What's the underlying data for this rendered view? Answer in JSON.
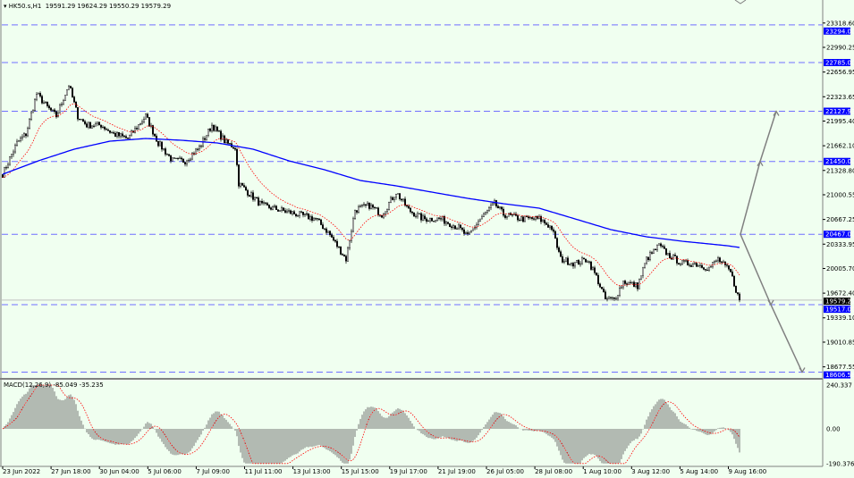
{
  "header": {
    "symbol": "HK50.s,H1",
    "ohlc": "19591.29 19624.29 19550.29 19579.29"
  },
  "macd": {
    "label": "MACD(12,26,9) -85.049 -35.235",
    "ticks": [
      "240.337",
      "0.00",
      "-190.376"
    ]
  },
  "colors": {
    "background": "#f0fff0",
    "level": "#0000ff",
    "level_line": "#6f6fff",
    "slow_ma": "#0000ff",
    "fast_ma": "#ff0000",
    "arrow": "#808080"
  },
  "chart_data": {
    "type": "candlestick",
    "symbol": "HK50.s",
    "timeframe": "H1",
    "y_ticks": [
      "23318.60",
      "22990.25",
      "22656.95",
      "22323.65",
      "21995.40",
      "21662.10",
      "21328.80",
      "21000.55",
      "20667.25",
      "20333.95",
      "20005.70",
      "19672.40",
      "19339.10",
      "19010.85",
      "18677.55"
    ],
    "ylim": [
      18580,
      23530
    ],
    "x_ticks": [
      "23 Jun 2022",
      "27 Jun 18:00",
      "30 Jun 04:00",
      "5 Jul 06:00",
      "7 Jul 09:00",
      "11 Jul 11:00",
      "13 Jul 13:00",
      "15 Jul 15:00",
      "19 Jul 17:00",
      "21 Jul 19:00",
      "26 Jul 05:00",
      "28 Jul 08:00",
      "1 Aug 10:00",
      "3 Aug 12:00",
      "5 Aug 14:00",
      "9 Aug 16:00"
    ],
    "levels": [
      "23294.00",
      "22785.00",
      "22127.93",
      "21450.00",
      "20467.00",
      "19517.00",
      "18606.58"
    ],
    "current_price": "19579.29",
    "close_keypoints": [
      [
        0,
        21278
      ],
      [
        8,
        21700
      ],
      [
        13,
        21820
      ],
      [
        19,
        22363
      ],
      [
        25,
        22182
      ],
      [
        30,
        22062
      ],
      [
        37,
        22484
      ],
      [
        42,
        22062
      ],
      [
        47,
        21941
      ],
      [
        55,
        21941
      ],
      [
        62,
        21820
      ],
      [
        70,
        21760
      ],
      [
        80,
        22062
      ],
      [
        87,
        21700
      ],
      [
        95,
        21459
      ],
      [
        102,
        21459
      ],
      [
        110,
        21640
      ],
      [
        117,
        21941
      ],
      [
        125,
        21700
      ],
      [
        130,
        21640
      ],
      [
        132,
        21157
      ],
      [
        137,
        21036
      ],
      [
        145,
        20856
      ],
      [
        155,
        20795
      ],
      [
        165,
        20735
      ],
      [
        175,
        20675
      ],
      [
        182,
        20494
      ],
      [
        187,
        20313
      ],
      [
        192,
        20132
      ],
      [
        197,
        20795
      ],
      [
        205,
        20856
      ],
      [
        212,
        20735
      ],
      [
        220,
        21036
      ],
      [
        227,
        20795
      ],
      [
        235,
        20675
      ],
      [
        245,
        20675
      ],
      [
        255,
        20554
      ],
      [
        260,
        20433
      ],
      [
        267,
        20675
      ],
      [
        275,
        20880
      ],
      [
        280,
        20735
      ],
      [
        290,
        20675
      ],
      [
        300,
        20675
      ],
      [
        307,
        20554
      ],
      [
        312,
        20132
      ],
      [
        320,
        20072
      ],
      [
        327,
        20132
      ],
      [
        332,
        19891
      ],
      [
        337,
        19589
      ],
      [
        342,
        19589
      ],
      [
        347,
        19830
      ],
      [
        355,
        19770
      ],
      [
        360,
        20132
      ],
      [
        367,
        20313
      ],
      [
        372,
        20192
      ],
      [
        380,
        20072
      ],
      [
        387,
        20072
      ],
      [
        395,
        20011
      ],
      [
        400,
        20132
      ],
      [
        407,
        19951
      ],
      [
        412,
        19565
      ]
    ],
    "slow_ma_keypoints": [
      [
        0,
        21278
      ],
      [
        20,
        21459
      ],
      [
        40,
        21616
      ],
      [
        60,
        21724
      ],
      [
        80,
        21760
      ],
      [
        100,
        21736
      ],
      [
        120,
        21700
      ],
      [
        140,
        21616
      ],
      [
        160,
        21459
      ],
      [
        180,
        21338
      ],
      [
        200,
        21193
      ],
      [
        220,
        21121
      ],
      [
        240,
        21036
      ],
      [
        260,
        20952
      ],
      [
        280,
        20880
      ],
      [
        300,
        20819
      ],
      [
        320,
        20675
      ],
      [
        340,
        20530
      ],
      [
        360,
        20433
      ],
      [
        380,
        20373
      ],
      [
        405,
        20313
      ],
      [
        412,
        20289
      ]
    ]
  }
}
